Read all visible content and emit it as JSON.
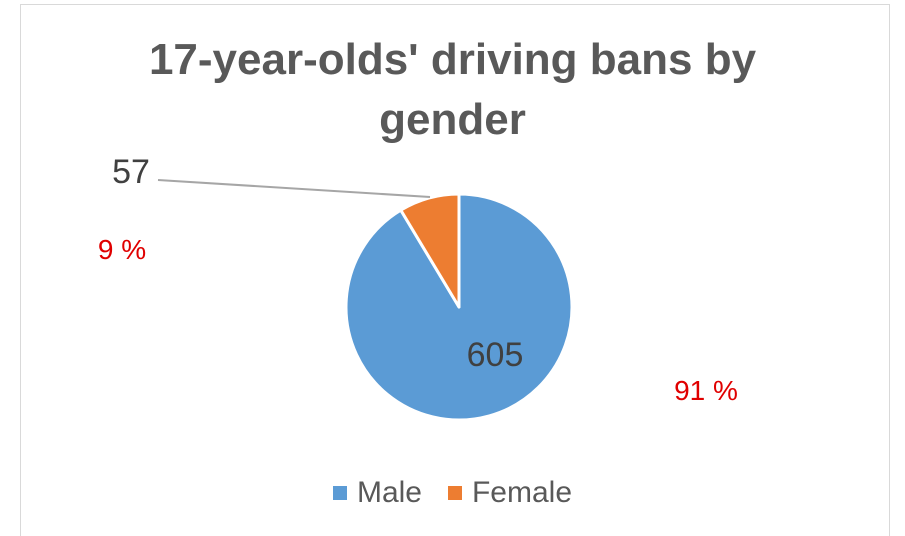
{
  "chart_data": {
    "type": "pie",
    "title": [
      "17-year-olds' driving bans by",
      "gender"
    ],
    "categories": [
      "Male",
      "Female"
    ],
    "values": [
      605,
      57
    ],
    "percent_labels": [
      "91 %",
      "9 %"
    ],
    "colors": [
      "#5b9bd5",
      "#ed7d31"
    ],
    "value_label_color": "#404040",
    "percent_label_color": "#e00000",
    "legend_position": "bottom"
  }
}
